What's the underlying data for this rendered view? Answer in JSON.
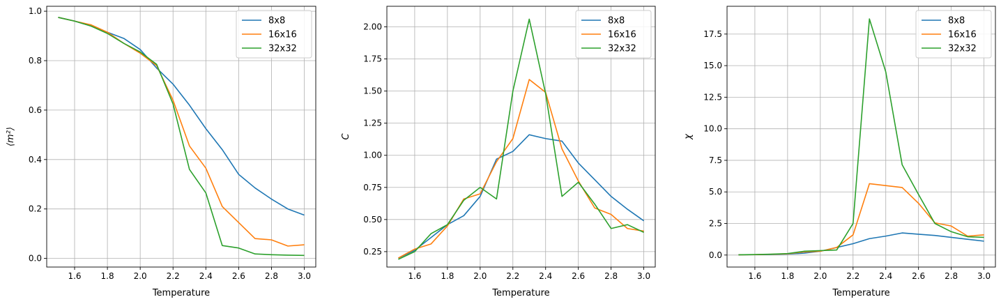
{
  "chart_data": [
    {
      "type": "line",
      "xlabel": "Temperature",
      "ylabel": "⟨m²⟩",
      "xlim": [
        1.43,
        3.07
      ],
      "ylim": [
        -0.035,
        1.02
      ],
      "xticks": [
        "1.6",
        "1.8",
        "2.0",
        "2.2",
        "2.4",
        "2.6",
        "2.8",
        "3.0"
      ],
      "yticks": [
        "0.0",
        "0.2",
        "0.4",
        "0.6",
        "0.8",
        "1.0"
      ],
      "grid": true,
      "legend": "top-right",
      "x": [
        1.5,
        1.6,
        1.7,
        1.8,
        1.9,
        2.0,
        2.1,
        2.2,
        2.3,
        2.4,
        2.5,
        2.6,
        2.7,
        2.8,
        2.9,
        3.0
      ],
      "series": [
        {
          "name": "8x8",
          "color": "#1f77b4",
          "values": [
            0.975,
            0.96,
            0.94,
            0.915,
            0.89,
            0.845,
            0.77,
            0.705,
            0.62,
            0.525,
            0.44,
            0.34,
            0.285,
            0.24,
            0.2,
            0.175
          ]
        },
        {
          "name": "16x16",
          "color": "#ff7f0e",
          "values": [
            0.975,
            0.96,
            0.945,
            0.915,
            0.87,
            0.83,
            0.78,
            0.64,
            0.455,
            0.365,
            0.21,
            0.145,
            0.08,
            0.075,
            0.05,
            0.055
          ]
        },
        {
          "name": "32x32",
          "color": "#2ca02c",
          "values": [
            0.975,
            0.96,
            0.94,
            0.91,
            0.87,
            0.835,
            0.785,
            0.625,
            0.36,
            0.265,
            0.052,
            0.042,
            0.018,
            0.015,
            0.013,
            0.012
          ]
        }
      ]
    },
    {
      "type": "line",
      "xlabel": "Temperature",
      "ylabel": "C",
      "xlim": [
        1.43,
        3.07
      ],
      "ylim": [
        0.13,
        2.16
      ],
      "xticks": [
        "1.6",
        "1.8",
        "2.0",
        "2.2",
        "2.4",
        "2.6",
        "2.8",
        "3.0"
      ],
      "yticks": [
        "0.25",
        "0.50",
        "0.75",
        "1.00",
        "1.25",
        "1.50",
        "1.75",
        "2.00"
      ],
      "grid": true,
      "legend": "top-right",
      "x": [
        1.5,
        1.6,
        1.7,
        1.8,
        1.9,
        2.0,
        2.1,
        2.2,
        2.3,
        2.4,
        2.5,
        2.6,
        2.7,
        2.8,
        2.9,
        3.0
      ],
      "series": [
        {
          "name": "8x8",
          "color": "#1f77b4",
          "values": [
            0.2,
            0.26,
            0.36,
            0.46,
            0.53,
            0.68,
            0.97,
            1.03,
            1.16,
            1.13,
            1.11,
            0.94,
            0.81,
            0.68,
            0.58,
            0.49
          ]
        },
        {
          "name": "16x16",
          "color": "#ff7f0e",
          "values": [
            0.2,
            0.27,
            0.31,
            0.45,
            0.66,
            0.7,
            0.95,
            1.13,
            1.59,
            1.49,
            1.05,
            0.8,
            0.59,
            0.54,
            0.43,
            0.41
          ]
        },
        {
          "name": "32x32",
          "color": "#2ca02c",
          "values": [
            0.19,
            0.25,
            0.39,
            0.46,
            0.65,
            0.75,
            0.66,
            1.5,
            2.06,
            1.48,
            0.68,
            0.79,
            0.62,
            0.43,
            0.46,
            0.4
          ]
        }
      ]
    },
    {
      "type": "line",
      "xlabel": "Temperature",
      "ylabel": "χ",
      "xlim": [
        1.43,
        3.07
      ],
      "ylim": [
        -0.95,
        19.7
      ],
      "xticks": [
        "1.6",
        "1.8",
        "2.0",
        "2.2",
        "2.4",
        "2.6",
        "2.8",
        "3.0"
      ],
      "yticks": [
        "0.0",
        "2.5",
        "5.0",
        "7.5",
        "10.0",
        "12.5",
        "15.0",
        "17.5"
      ],
      "grid": true,
      "legend": "top-right",
      "x": [
        1.5,
        1.6,
        1.7,
        1.8,
        1.9,
        2.0,
        2.1,
        2.2,
        2.3,
        2.4,
        2.5,
        2.6,
        2.7,
        2.8,
        2.9,
        3.0
      ],
      "series": [
        {
          "name": "8x8",
          "color": "#1f77b4",
          "values": [
            0.02,
            0.03,
            0.05,
            0.08,
            0.15,
            0.3,
            0.6,
            0.9,
            1.3,
            1.5,
            1.75,
            1.65,
            1.55,
            1.4,
            1.25,
            1.1
          ]
        },
        {
          "name": "16x16",
          "color": "#ff7f0e",
          "values": [
            0.02,
            0.03,
            0.06,
            0.1,
            0.25,
            0.3,
            0.6,
            1.6,
            5.65,
            5.5,
            5.35,
            4.1,
            2.55,
            2.3,
            1.5,
            1.6
          ]
        },
        {
          "name": "32x32",
          "color": "#2ca02c",
          "values": [
            0.02,
            0.04,
            0.07,
            0.12,
            0.3,
            0.35,
            0.4,
            2.5,
            18.7,
            14.5,
            7.15,
            4.8,
            2.5,
            1.85,
            1.45,
            1.4
          ]
        }
      ]
    }
  ]
}
